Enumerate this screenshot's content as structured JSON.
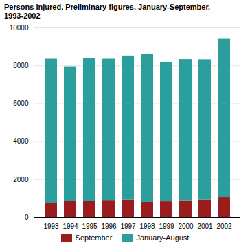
{
  "chart_data": {
    "type": "bar",
    "title": "Persons injured. Preliminary figures. January-September.",
    "subtitle": "1993-2002",
    "categories": [
      "1993",
      "1994",
      "1995",
      "1996",
      "1997",
      "1998",
      "1999",
      "2000",
      "2001",
      "2002"
    ],
    "series": [
      {
        "name": "September",
        "color": "#9B1C1C",
        "values": [
          750,
          850,
          870,
          900,
          920,
          800,
          830,
          880,
          920,
          1050
        ]
      },
      {
        "name": "January-August",
        "color": "#2B9E9E",
        "values": [
          7600,
          7100,
          7500,
          7450,
          7600,
          7800,
          7350,
          7450,
          7400,
          8350
        ]
      }
    ],
    "stacked": true,
    "ylim": [
      0,
      10000
    ],
    "yticks": [
      0,
      2000,
      4000,
      6000,
      8000,
      10000
    ],
    "grid": true,
    "legend": "bottom"
  }
}
